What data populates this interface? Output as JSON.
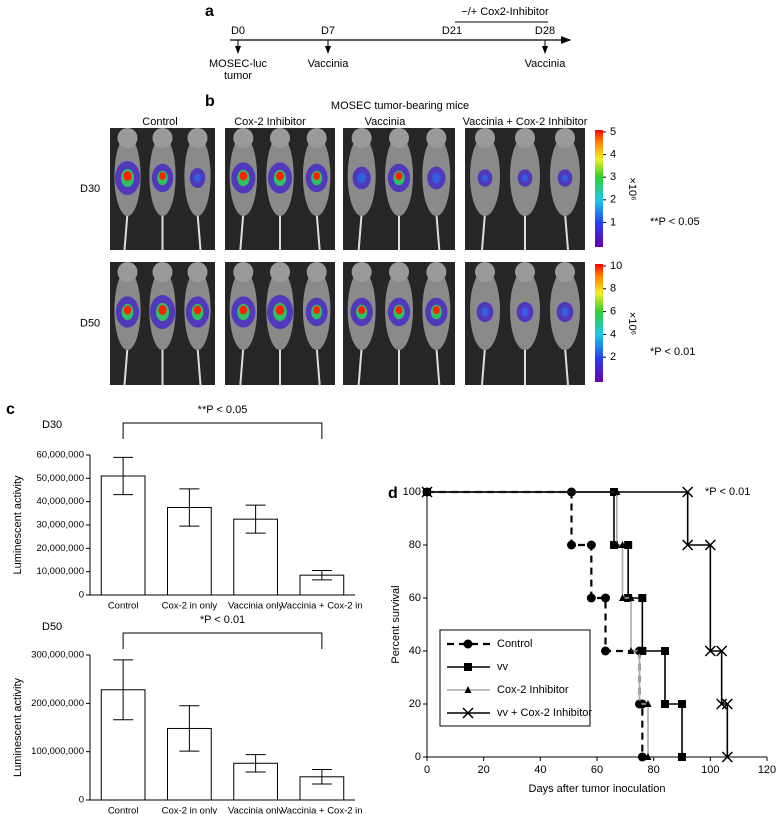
{
  "panel_a": {
    "label": "a",
    "treatment": "−/+ Cox2-Inhibitor",
    "marks": [
      {
        "day": "D0",
        "event": [
          "MOSEC-luc",
          "tumor"
        ]
      },
      {
        "day": "D7",
        "event": [
          "Vaccinia"
        ]
      },
      {
        "day": "D21"
      },
      {
        "day": "D28",
        "event": [
          "Vaccinia"
        ]
      }
    ]
  },
  "panel_b": {
    "label": "b",
    "title": "MOSEC tumor-bearing mice",
    "groups": [
      "Control",
      "Cox-2 Inhibitor",
      "Vaccinia",
      "Vaccinia + Cox-2 Inhibitor"
    ],
    "rows": [
      {
        "day": "D30",
        "colorbar_ticks": [
          1,
          2,
          3,
          4,
          5
        ],
        "scale": "×10⁶",
        "p_value": "**P < 0.05"
      },
      {
        "day": "D50",
        "colorbar_ticks": [
          2,
          4,
          6,
          8,
          10
        ],
        "scale": "×10⁶",
        "p_value": "*P < 0.01"
      }
    ]
  },
  "panel_c": {
    "label": "c"
  },
  "panel_d": {
    "label": "d"
  },
  "chart_data": [
    {
      "type": "bar",
      "title": "D30",
      "annotation": "**P < 0.05",
      "y_label": "Luminescent activity",
      "categories": [
        "Control",
        "Cox-2 in only",
        "Vaccinia only",
        "Vaccinia + Cox-2 in"
      ],
      "values": [
        51000000,
        37500000,
        32500000,
        8500000
      ],
      "errors": [
        8000000,
        8000000,
        6000000,
        2000000
      ],
      "color": "#ffffff",
      "ylim": [
        0,
        60000000
      ],
      "yticks": [
        0,
        {
          "value": 10000000,
          "label": "10,000,000"
        },
        {
          "value": 20000000,
          "label": "20,000,000"
        },
        {
          "value": 30000000,
          "label": "30,000,000"
        },
        {
          "value": 40000000,
          "label": "40,000,000"
        },
        {
          "value": 50000000,
          "label": "50,000,000"
        },
        {
          "value": 60000000,
          "label": "60,000,000"
        }
      ]
    },
    {
      "type": "bar",
      "title": "D50",
      "annotation": "*P < 0.01",
      "y_label": "Luminescent activity",
      "categories": [
        "Control",
        "Cox-2 in only",
        "Vaccinia only",
        "Vaccinia + Cox-2 in"
      ],
      "values": [
        228000000,
        148000000,
        76000000,
        48000000
      ],
      "errors": [
        62000000,
        47000000,
        18000000,
        15000000
      ],
      "color": "#ffffff",
      "ylim": [
        0,
        300000000
      ],
      "yticks": [
        0,
        {
          "value": 100000000,
          "label": "100,000,000"
        },
        {
          "value": 200000000,
          "label": "200,000,000"
        },
        {
          "value": 300000000,
          "label": "300,000,000"
        }
      ]
    },
    {
      "type": "line",
      "annotation": "*P < 0.01",
      "x_label": "Days after tumor inoculation",
      "y_label": "Percent survival",
      "xlim": [
        0,
        120
      ],
      "xticks": [
        0,
        20,
        40,
        60,
        80,
        100,
        120
      ],
      "ylim": [
        0,
        100
      ],
      "yticks": [
        0,
        20,
        40,
        60,
        80,
        100
      ],
      "legend": "lower left",
      "series": [
        {
          "name": "Control",
          "color": "#000000",
          "marker": "circle",
          "dash": true,
          "x": [
            0,
            51,
            51,
            58,
            58,
            63,
            63,
            75,
            75,
            76,
            76
          ],
          "values": [
            100,
            100,
            80,
            80,
            60,
            60,
            40,
            40,
            20,
            20,
            0
          ]
        },
        {
          "name": "vv",
          "color": "#000000",
          "marker": "square",
          "dash": false,
          "x": [
            0,
            66,
            66,
            71,
            71,
            76,
            76,
            84,
            84,
            90,
            90
          ],
          "values": [
            100,
            100,
            80,
            80,
            60,
            60,
            40,
            40,
            20,
            20,
            0
          ]
        },
        {
          "name": "Cox-2 Inhibitor",
          "color": "#aaaaaa",
          "marker": "triangle",
          "dash": false,
          "x": [
            0,
            67,
            67,
            69,
            69,
            72,
            72,
            75,
            75,
            78,
            78
          ],
          "values": [
            100,
            100,
            80,
            80,
            60,
            60,
            40,
            40,
            20,
            20,
            0
          ]
        },
        {
          "name": "vv + Cox-2 Inhibitor",
          "color": "#000000",
          "marker": "x",
          "dash": false,
          "x": [
            0,
            92,
            92,
            100,
            100,
            104,
            104,
            106,
            106
          ],
          "values": [
            100,
            100,
            80,
            80,
            40,
            40,
            20,
            20,
            0
          ]
        }
      ]
    }
  ]
}
